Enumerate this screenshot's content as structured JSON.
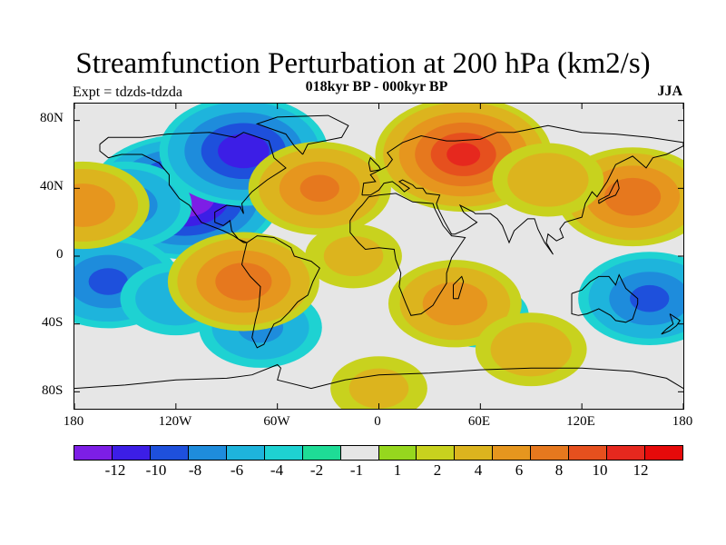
{
  "figure": {
    "title": "Streamfunction Perturbation at 200 hPa (km2/s)",
    "subtitle": "018kyr BP - 000kyr BP",
    "left_label": "Expt = tdzds-tdzda",
    "right_label": "JJA"
  },
  "axes": {
    "lat_labels": [
      "80N",
      "40N",
      "0",
      "40S",
      "80S"
    ],
    "lon_labels": [
      "180",
      "120W",
      "60W",
      "0",
      "60E",
      "120E",
      "180"
    ]
  },
  "colorbar": {
    "colors": [
      "#7d1ee6",
      "#3c1ee6",
      "#1e50dc",
      "#1e8cdc",
      "#1eb4dc",
      "#1ed2d2",
      "#1edc96",
      "#e6e6e6",
      "#96d71e",
      "#c8d21e",
      "#dcb41e",
      "#e6961e",
      "#e6781e",
      "#e6501e",
      "#e6281e",
      "#e60a0a"
    ],
    "labels": [
      "-12",
      "-10",
      "-8",
      "-6",
      "-4",
      "-2",
      "-1",
      "1",
      "2",
      "4",
      "6",
      "8",
      "10",
      "12"
    ]
  },
  "map_features": {
    "features": [
      {
        "name": "north-america-low",
        "center": [
          -115,
          35
        ],
        "peak": -12
      },
      {
        "name": "arctic-canada-low",
        "center": [
          -80,
          62
        ],
        "peak": -9
      },
      {
        "name": "north-pacific-low",
        "center": [
          -150,
          30
        ],
        "peak": -5
      },
      {
        "name": "south-pacific-low",
        "center": [
          -160,
          -15
        ],
        "peak": -6
      },
      {
        "name": "south-pacific-east-low",
        "center": [
          -120,
          -25
        ],
        "peak": -3
      },
      {
        "name": "south-atlantic-low",
        "center": [
          -70,
          -42
        ],
        "peak": -4
      },
      {
        "name": "southwest-pacific-low",
        "center": [
          160,
          -25
        ],
        "peak": -6
      },
      {
        "name": "southern-ocean-low",
        "center": [
          60,
          -35
        ],
        "peak": -2
      },
      {
        "name": "eurasia-high",
        "center": [
          50,
          60
        ],
        "peak": 10
      },
      {
        "name": "tropical-south-america-high",
        "center": [
          -80,
          -15
        ],
        "peak": 7
      },
      {
        "name": "north-atlantic-high",
        "center": [
          -35,
          40
        ],
        "peak": 6
      },
      {
        "name": "south-indian-high",
        "center": [
          45,
          -28
        ],
        "peak": 5
      },
      {
        "name": "north-pacific-east-high",
        "center": [
          150,
          35
        ],
        "peak": 7
      },
      {
        "name": "north-pacific-west-high",
        "center": [
          -175,
          30
        ],
        "peak": 5
      },
      {
        "name": "tropical-atlantic-high",
        "center": [
          -15,
          0
        ],
        "peak": 2
      },
      {
        "name": "antarctic-high",
        "center": [
          0,
          -78
        ],
        "peak": 2
      },
      {
        "name": "east-asia-high",
        "center": [
          100,
          45
        ],
        "peak": 3
      },
      {
        "name": "southern-ocean-high",
        "center": [
          90,
          -55
        ],
        "peak": 3
      }
    ]
  }
}
